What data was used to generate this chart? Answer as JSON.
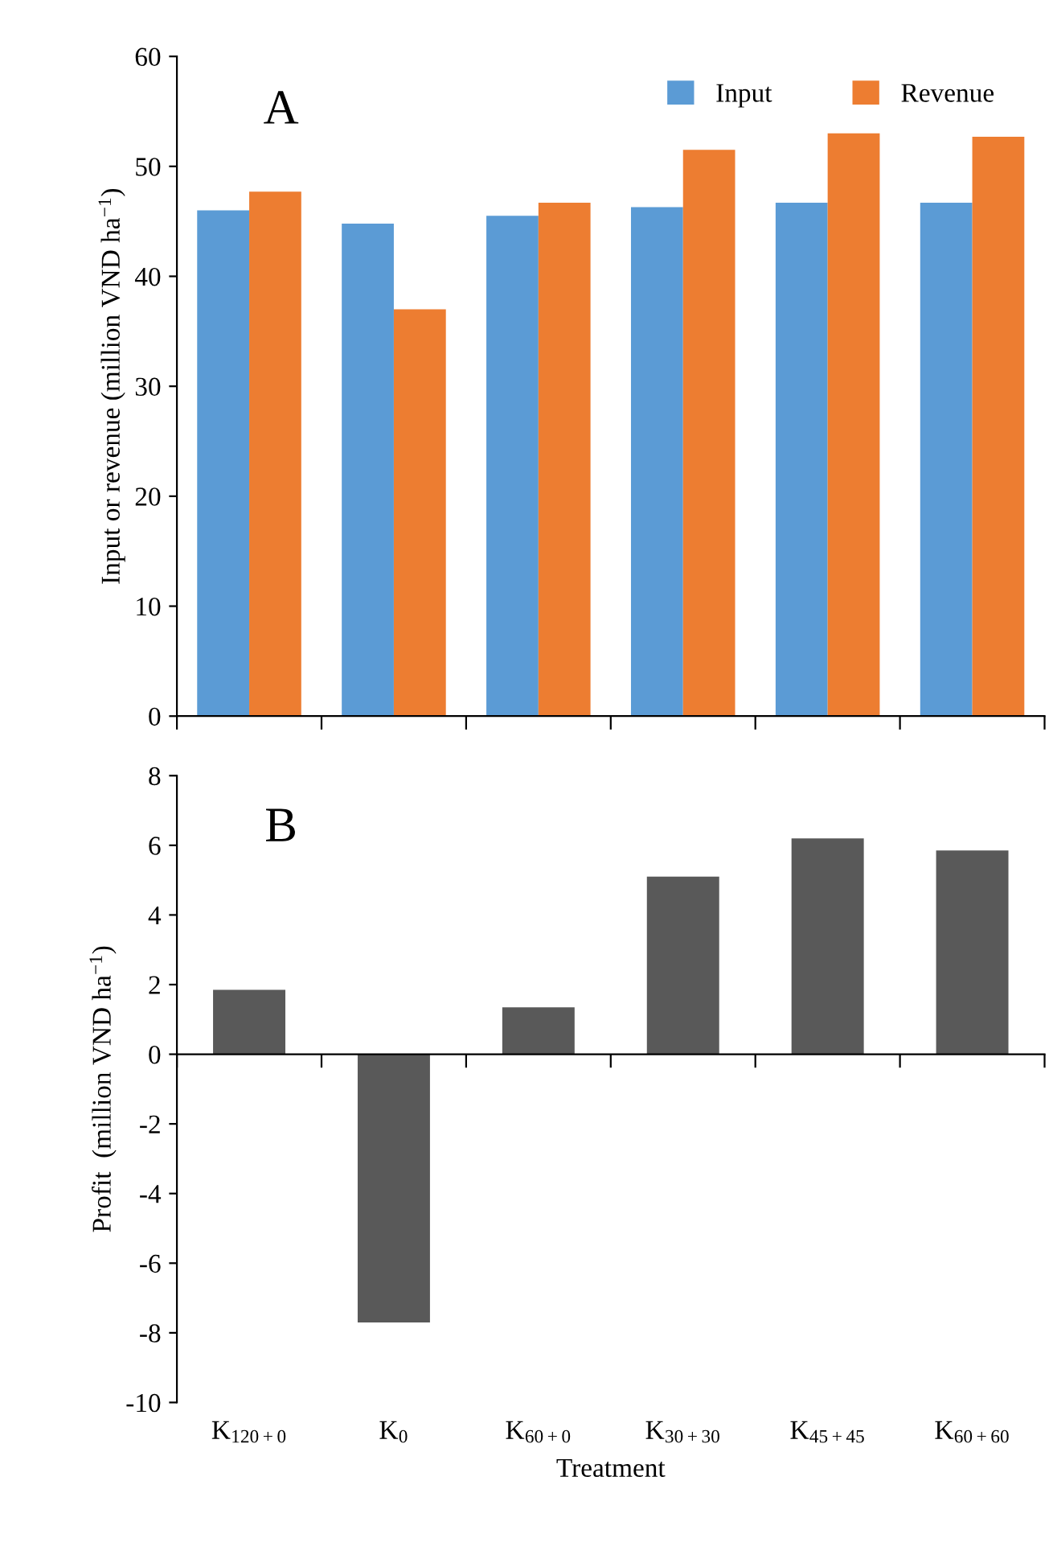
{
  "chart_data": [
    {
      "type": "bar",
      "categories": [
        null,
        null,
        null,
        null,
        null,
        null
      ],
      "series": [
        {
          "name": "Input",
          "color": "#5b9bd5",
          "values": [
            46.0,
            44.8,
            45.5,
            46.3,
            46.7,
            46.7
          ]
        },
        {
          "name": "Revenue",
          "color": "#ed7d31",
          "values": [
            47.7,
            37.0,
            46.7,
            51.5,
            53.0,
            52.7
          ]
        }
      ],
      "ylabel": "Input or revenue (million VND ha$^{−1}$)",
      "ylim": [
        0,
        60
      ],
      "yticks": [
        0,
        10,
        20,
        30,
        40,
        50,
        60
      ],
      "annotations": [
        "A"
      ],
      "legend": "top right",
      "tick_labels": "y"
    },
    {
      "type": "bar",
      "categories": [
        "K$_{120+0}$",
        "K$_{0}$",
        "K$_{60+0}$",
        "K$_{30+30}$",
        "K$_{45+45}$",
        "K$_{60+60}$"
      ],
      "series": [
        {
          "color": "#595959",
          "values": [
            1.85,
            -7.7,
            1.35,
            5.1,
            6.2,
            5.85
          ]
        }
      ],
      "xlabel": "Treatment",
      "ylabel": "Profit  (million VND ha$^{−1}$)",
      "ylim": [
        -10,
        8
      ],
      "yticks": [
        -10,
        -8,
        -6,
        -4,
        -2,
        0,
        2,
        4,
        6,
        8
      ],
      "annotations": [
        "B"
      ],
      "legend": false
    }
  ]
}
